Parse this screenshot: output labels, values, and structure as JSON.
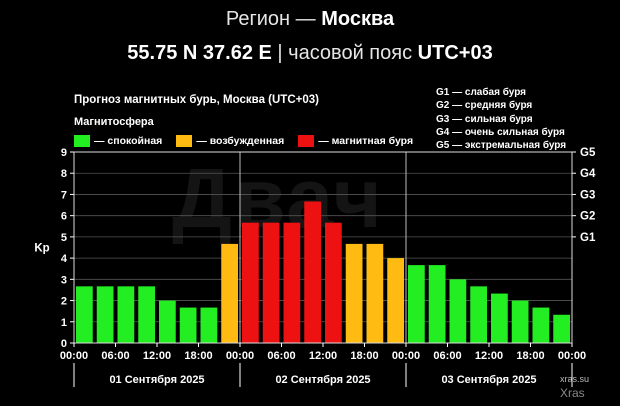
{
  "header": {
    "line1_prefix": "Регион — ",
    "line1_region": "Москва",
    "line2_coords": "55.75 N 37.62 E",
    "line2_sep": " | часовой пояс ",
    "line2_tz": "UTC+03"
  },
  "chart_title": "Прогноз магнитных бурь, Москва (UTC+03)",
  "legend": {
    "title": "Магнитосфера",
    "items": [
      {
        "label": "— спокойная",
        "color": "#22ee22"
      },
      {
        "label": "— возбужденная",
        "color": "#ffbb11"
      },
      {
        "label": "— магнитная буря",
        "color": "#ee1111"
      }
    ]
  },
  "storm_levels": [
    "G1 — слабая буря",
    "G2 — средняя буря",
    "G3 — сильная буря",
    "G4 — очень сильная буря",
    "G5 — экстремальная буря"
  ],
  "watermark": {
    "logo": "Двач",
    "site": "xras.su",
    "credit": "Xras"
  },
  "chart_data": {
    "type": "bar",
    "ylabel": "Kp",
    "ylim": [
      0,
      9
    ],
    "yticks": [
      0,
      1,
      2,
      3,
      4,
      5,
      6,
      7,
      8,
      9
    ],
    "right_ticks": [
      {
        "value": 5,
        "label": "G1"
      },
      {
        "value": 6,
        "label": "G2"
      },
      {
        "value": 7,
        "label": "G3"
      },
      {
        "value": 8,
        "label": "G4"
      },
      {
        "value": 9,
        "label": "G5"
      }
    ],
    "xtick_labels": [
      "00:00",
      "06:00",
      "12:00",
      "18:00",
      "00:00",
      "06:00",
      "12:00",
      "18:00",
      "00:00",
      "06:00",
      "12:00",
      "18:00",
      "00:00"
    ],
    "days": [
      "01 Сентября 2025",
      "02 Сентября 2025",
      "03 Сентября 2025"
    ],
    "values": [
      2.67,
      2.67,
      2.67,
      2.67,
      2.0,
      1.67,
      1.67,
      4.67,
      5.67,
      5.67,
      5.67,
      6.67,
      5.67,
      4.67,
      4.67,
      4.0,
      3.67,
      3.67,
      3.0,
      2.67,
      2.33,
      2.0,
      1.67,
      1.33
    ],
    "colors": {
      "quiet": "#22ee22",
      "unsettled": "#ffbb11",
      "storm": "#ee1111"
    },
    "color_rule": "Kp < 4 quiet, 4 <= Kp < 5 unsettled, Kp >= 5 storm",
    "grid": true
  }
}
